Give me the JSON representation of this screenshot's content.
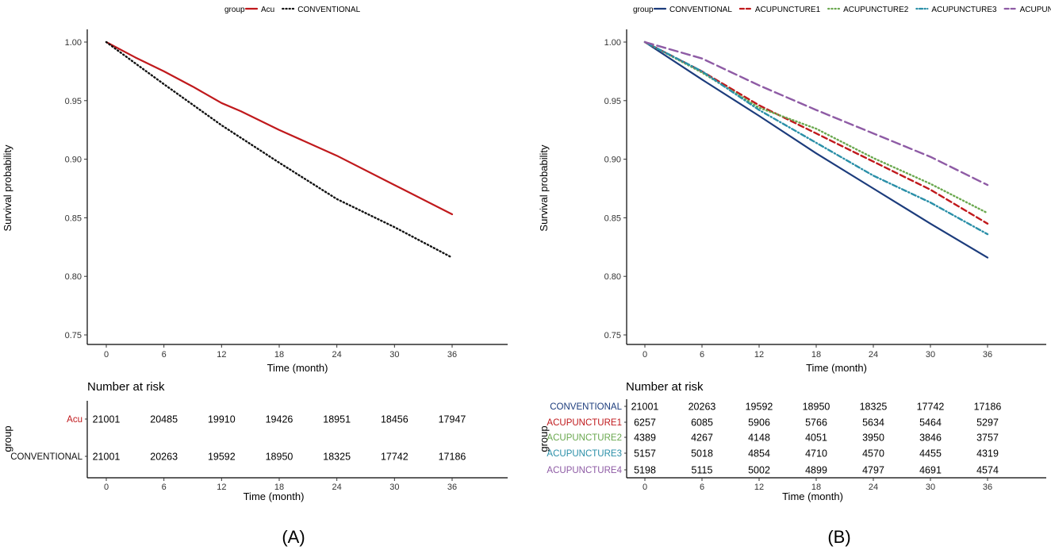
{
  "chart_data": [
    {
      "panel_label": "(A)",
      "type": "line",
      "legend_title": "group",
      "xlabel": "Time (month)",
      "ylabel": "Survival probability",
      "xticks": [
        0,
        6,
        12,
        18,
        24,
        30,
        36
      ],
      "yticks": [
        "0.75",
        "0.80",
        "0.85",
        "0.90",
        "0.95",
        "1.00"
      ],
      "xlim": [
        -2,
        42
      ],
      "ylim": [
        0.745,
        1.005
      ],
      "series": [
        {
          "name": "Acu",
          "color": "#c0191c",
          "style": "solid",
          "x": [
            0,
            3,
            6,
            9,
            12,
            14,
            18,
            24,
            30,
            36
          ],
          "y": [
            1.0,
            0.987,
            0.975,
            0.962,
            0.948,
            0.941,
            0.925,
            0.903,
            0.878,
            0.853
          ]
        },
        {
          "name": "CONVENTIONAL",
          "color": "#111111",
          "style": "dotted",
          "x": [
            0,
            3,
            6,
            12,
            18,
            24,
            30,
            36
          ],
          "y": [
            1.0,
            0.982,
            0.964,
            0.929,
            0.897,
            0.866,
            0.842,
            0.816
          ]
        }
      ],
      "risk_table": {
        "title": "Number at risk",
        "ylabel": "group",
        "xlabel": "Time (month)",
        "rows": [
          {
            "group": "Acu",
            "color": "#c0191c",
            "values": [
              "21001",
              "20485",
              "19910",
              "19426",
              "18951",
              "18456",
              "17947"
            ]
          },
          {
            "group": "CONVENTIONAL",
            "color": "#111111",
            "values": [
              "21001",
              "20263",
              "19592",
              "18950",
              "18325",
              "17742",
              "17186"
            ]
          }
        ]
      }
    },
    {
      "panel_label": "(B)",
      "type": "line",
      "legend_title": "group",
      "xlabel": "Time (month)",
      "ylabel": "Survival probability",
      "xticks": [
        0,
        6,
        12,
        18,
        24,
        30,
        36
      ],
      "yticks": [
        "0.75",
        "0.80",
        "0.85",
        "0.90",
        "0.95",
        "1.00"
      ],
      "xlim": [
        -2,
        42
      ],
      "ylim": [
        0.745,
        1.005
      ],
      "series": [
        {
          "name": "CONVENTIONAL",
          "color": "#1c3c7c",
          "style": "solid",
          "x": [
            0,
            6,
            12,
            18,
            24,
            30,
            36
          ],
          "y": [
            1.0,
            0.968,
            0.937,
            0.905,
            0.875,
            0.845,
            0.816
          ]
        },
        {
          "name": "ACUPUNCTURE1",
          "color": "#c0191c",
          "style": "dashed",
          "x": [
            0,
            6,
            12,
            18,
            24,
            30,
            36
          ],
          "y": [
            1.0,
            0.975,
            0.946,
            0.922,
            0.898,
            0.874,
            0.845
          ]
        },
        {
          "name": "ACUPUNCTURE2",
          "color": "#6aa84f",
          "style": "dotted",
          "x": [
            0,
            6,
            12,
            18,
            24,
            30,
            36
          ],
          "y": [
            1.0,
            0.974,
            0.944,
            0.926,
            0.901,
            0.879,
            0.854
          ]
        },
        {
          "name": "ACUPUNCTURE3",
          "color": "#2a8fa8",
          "style": "dotdash",
          "x": [
            0,
            6,
            12,
            18,
            24,
            30,
            36
          ],
          "y": [
            1.0,
            0.975,
            0.942,
            0.914,
            0.886,
            0.863,
            0.836
          ]
        },
        {
          "name": "ACUPUNCTURE4",
          "color": "#8e5ba5",
          "style": "longdash",
          "x": [
            0,
            6,
            12,
            18,
            24,
            30,
            36
          ],
          "y": [
            1.0,
            0.986,
            0.963,
            0.942,
            0.922,
            0.902,
            0.878
          ]
        }
      ],
      "risk_table": {
        "title": "Number at risk",
        "ylabel": "group",
        "xlabel": "Time (month)",
        "rows": [
          {
            "group": "CONVENTIONAL",
            "color": "#1c3c7c",
            "values": [
              "21001",
              "20263",
              "19592",
              "18950",
              "18325",
              "17742",
              "17186"
            ]
          },
          {
            "group": "ACUPUNCTURE1",
            "color": "#c0191c",
            "values": [
              "6257",
              "6085",
              "5906",
              "5766",
              "5634",
              "5464",
              "5297"
            ]
          },
          {
            "group": "ACUPUNCTURE2",
            "color": "#6aa84f",
            "values": [
              "4389",
              "4267",
              "4148",
              "4051",
              "3950",
              "3846",
              "3757"
            ]
          },
          {
            "group": "ACUPUNCTURE3",
            "color": "#2a8fa8",
            "values": [
              "5157",
              "5018",
              "4854",
              "4710",
              "4570",
              "4455",
              "4319"
            ]
          },
          {
            "group": "ACUPUNCTURE4",
            "color": "#8e5ba5",
            "values": [
              "5198",
              "5115",
              "5002",
              "4899",
              "4797",
              "4691",
              "4574"
            ]
          }
        ]
      }
    }
  ]
}
